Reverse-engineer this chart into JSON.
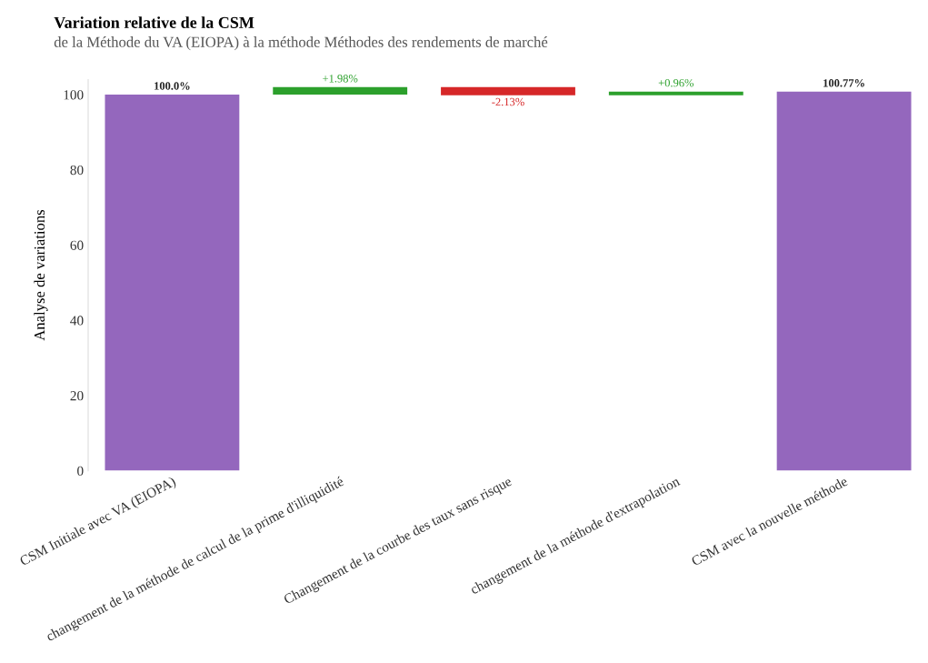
{
  "chart_data": {
    "type": "bar",
    "title": "Variation relative de la CSM",
    "subtitle": "de la Méthode du VA (EIOPA) à la méthode Méthodes des rendements de marché",
    "ylabel": "Analyse de variations",
    "categories": [
      "CSM Initiale avec VA (EIOPA)",
      "changement de la méthode de calcul de la prime d'illiquidité",
      "Changement de la courbe des taux sans risque",
      "changement de la méthode d'extrapolation",
      "CSM avec la nouvelle méthode"
    ],
    "values": [
      100,
      1.98,
      -2.13,
      0.96,
      100.77
    ],
    "base": [
      0,
      100,
      101.98,
      99.85,
      0
    ],
    "colors": [
      "#9467bd",
      "#2ca02c",
      "#d62728",
      "#2ca02c",
      "#9467bd"
    ],
    "value_labels": [
      "100.0%",
      "+1.98%",
      "-2.13%",
      "+0.96%",
      "100.77%"
    ],
    "ylim": [
      0,
      104
    ],
    "yticks": [
      0,
      20,
      40,
      60,
      80,
      100
    ],
    "grid": false,
    "legend": false
  }
}
